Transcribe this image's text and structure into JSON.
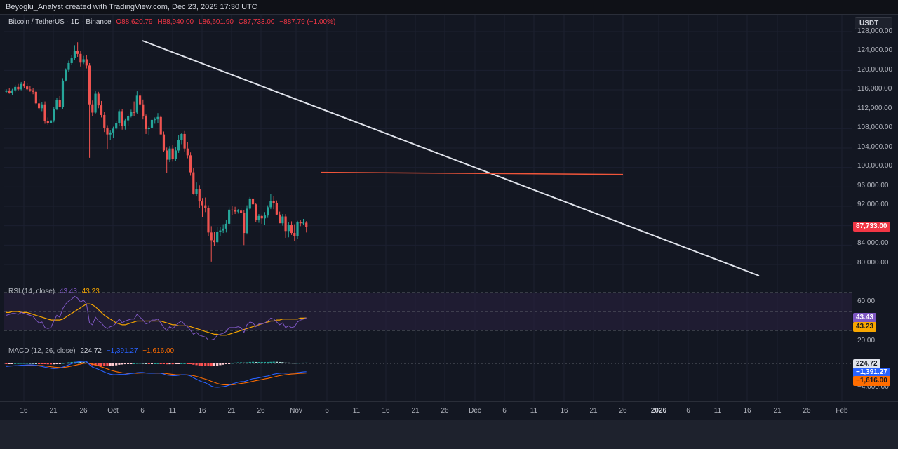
{
  "header": {
    "credit": "Beyoglu_Analyst created with TradingView.com, Dec 23, 2025 17:30 UTC"
  },
  "main": {
    "legend": {
      "symbol": "Bitcoin / TetherUS · 1D · Binance",
      "open": "O88,620.79",
      "high": "H88,940.00",
      "low": "L86,601.90",
      "close": "C87,733.00",
      "change": "−887.79 (−1.00%)"
    },
    "currency_button": "USDT",
    "price_ticks": [
      "128,000.00",
      "124,000.00",
      "120,000.00",
      "116,000.00",
      "112,000.00",
      "108,000.00",
      "104,000.00",
      "100,000.00",
      "96,000.00",
      "92,000.00",
      "88,000.00",
      "84,000.00",
      "80,000.00"
    ],
    "last_price": "87,733.00",
    "colors": {
      "up": "#26a69a",
      "down": "#ef5350",
      "trendline": "#e0e3eb",
      "support": "#f0553a",
      "price_tag": "#f23645"
    }
  },
  "rsi": {
    "legend": {
      "name": "RSI (14, close)",
      "value": "43.43",
      "ma": "43.23"
    },
    "ticks": [
      "60.00",
      "20.00"
    ],
    "tags": {
      "rsi": "43.43",
      "ma": "43.23"
    },
    "colors": {
      "rsi": "#7e57c2",
      "ma": "#f7a600",
      "band": "#2a2040"
    }
  },
  "macd": {
    "legend": {
      "name": "MACD (12, 26, close)",
      "hist": "224.72",
      "macd": "−1,391.27",
      "signal": "−1,616.00"
    },
    "ticks": [
      "−4,000.00"
    ],
    "tags": {
      "hist": "224.72",
      "macd": "−1,391.27",
      "signal": "−1,616.00"
    },
    "colors": {
      "macd": "#2962ff",
      "signal": "#ff6d00"
    }
  },
  "time_axis": [
    "16",
    "21",
    "26",
    "Oct",
    "6",
    "11",
    "16",
    "21",
    "26",
    "Nov",
    "6",
    "11",
    "16",
    "21",
    "26",
    "Dec",
    "6",
    "11",
    "16",
    "21",
    "26",
    "2026",
    "6",
    "11",
    "16",
    "21",
    "26",
    "Feb"
  ],
  "chart_data": {
    "type": "candlestick",
    "series": [
      {
        "name": "Bitcoin / TetherUS",
        "ohlc": [
          [
            115600,
            116100,
            115300,
            115800
          ],
          [
            115800,
            116400,
            115200,
            115400
          ],
          [
            115400,
            116200,
            114900,
            115900
          ],
          [
            115900,
            117000,
            115500,
            116600
          ],
          [
            116600,
            117200,
            115800,
            116100
          ],
          [
            116100,
            117600,
            115900,
            117200
          ],
          [
            117200,
            117800,
            116400,
            116700
          ],
          [
            116700,
            117400,
            115900,
            116100
          ],
          [
            116100,
            116800,
            115600,
            115900
          ],
          [
            115900,
            116300,
            115100,
            115600
          ],
          [
            115600,
            115900,
            113000,
            113200
          ],
          [
            113200,
            114100,
            111800,
            112200
          ],
          [
            112200,
            113500,
            111600,
            113000
          ],
          [
            113000,
            113600,
            109000,
            109600
          ],
          [
            109600,
            110300,
            108800,
            109200
          ],
          [
            109200,
            110000,
            108900,
            109700
          ],
          [
            109700,
            112500,
            109300,
            112000
          ],
          [
            112000,
            114300,
            111800,
            113900
          ],
          [
            113900,
            114700,
            112500,
            112400
          ],
          [
            112400,
            118400,
            112100,
            117900
          ],
          [
            117900,
            120400,
            117700,
            120100
          ],
          [
            120100,
            122000,
            119700,
            121500
          ],
          [
            121500,
            123200,
            121100,
            122500
          ],
          [
            122500,
            125200,
            122100,
            124100
          ],
          [
            124100,
            125800,
            122800,
            123400
          ],
          [
            123400,
            124000,
            120800,
            121600
          ],
          [
            121600,
            123000,
            121300,
            122300
          ],
          [
            122300,
            123100,
            120400,
            121000
          ],
          [
            121000,
            121500,
            102000,
            113000
          ],
          [
            113000,
            113800,
            110600,
            111300
          ],
          [
            111300,
            115700,
            111100,
            115200
          ],
          [
            115200,
            115600,
            112200,
            112800
          ],
          [
            112800,
            113700,
            110300,
            110800
          ],
          [
            110800,
            111400,
            107300,
            108200
          ],
          [
            108200,
            108700,
            103700,
            106800
          ],
          [
            106800,
            107600,
            105600,
            107200
          ],
          [
            107200,
            108400,
            106100,
            108000
          ],
          [
            108000,
            109600,
            107800,
            109100
          ],
          [
            109100,
            111900,
            108600,
            111600
          ],
          [
            111600,
            112000,
            107800,
            108500
          ],
          [
            108500,
            110100,
            107800,
            109700
          ],
          [
            109700,
            110900,
            108600,
            110600
          ],
          [
            110600,
            111900,
            110300,
            111400
          ],
          [
            111400,
            113600,
            110600,
            111300
          ],
          [
            111300,
            115700,
            111000,
            114800
          ],
          [
            114800,
            115400,
            112600,
            113000
          ],
          [
            113000,
            114000,
            109900,
            110500
          ],
          [
            110500,
            110900,
            106900,
            107900
          ],
          [
            107900,
            108600,
            106600,
            108200
          ],
          [
            108200,
            110600,
            107900,
            109800
          ],
          [
            109800,
            110300,
            109000,
            109900
          ],
          [
            109900,
            111200,
            109200,
            110400
          ],
          [
            110400,
            110700,
            106800,
            106800
          ],
          [
            106800,
            107400,
            103200,
            103500
          ],
          [
            103500,
            104100,
            98900,
            101600
          ],
          [
            101600,
            104400,
            101100,
            103900
          ],
          [
            103900,
            104700,
            101200,
            101800
          ],
          [
            101800,
            104200,
            101300,
            103500
          ],
          [
            103500,
            106600,
            103000,
            105600
          ],
          [
            105600,
            107100,
            104800,
            106900
          ],
          [
            106900,
            107500,
            103300,
            103900
          ],
          [
            103900,
            105300,
            101900,
            102500
          ],
          [
            102500,
            103100,
            98300,
            99000
          ],
          [
            99000,
            99800,
            94400,
            94500
          ],
          [
            94500,
            96900,
            94100,
            95600
          ],
          [
            95600,
            96300,
            91600,
            93000
          ],
          [
            93000,
            93700,
            89700,
            92200
          ],
          [
            92200,
            93800,
            90800,
            91600
          ],
          [
            91600,
            92200,
            85800,
            86600
          ],
          [
            86600,
            87900,
            80600,
            85000
          ],
          [
            85000,
            86700,
            83900,
            84600
          ],
          [
            84600,
            87700,
            84300,
            86800
          ],
          [
            86800,
            87700,
            85900,
            87000
          ],
          [
            87000,
            88300,
            86500,
            87400
          ],
          [
            87400,
            89200,
            86600,
            88400
          ],
          [
            88400,
            91800,
            88200,
            91300
          ],
          [
            91300,
            92000,
            90200,
            91200
          ],
          [
            91200,
            91900,
            90400,
            90900
          ],
          [
            90900,
            91400,
            90500,
            91100
          ],
          [
            91100,
            91700,
            90300,
            90700
          ],
          [
            90700,
            91200,
            84000,
            86500
          ],
          [
            86500,
            92200,
            86200,
            91500
          ],
          [
            91500,
            93900,
            91200,
            93600
          ],
          [
            93600,
            94100,
            92100,
            92400
          ],
          [
            92400,
            92700,
            88800,
            89200
          ],
          [
            89200,
            90400,
            88600,
            90000
          ],
          [
            90000,
            90300,
            88400,
            89500
          ],
          [
            89500,
            90800,
            88200,
            90100
          ],
          [
            90100,
            92200,
            89600,
            91800
          ],
          [
            91800,
            94600,
            91400,
            93100
          ],
          [
            93100,
            94100,
            91400,
            92600
          ],
          [
            92600,
            93200,
            90200,
            90300
          ],
          [
            90300,
            90900,
            88600,
            88500
          ],
          [
            88500,
            90400,
            88000,
            89900
          ],
          [
            89900,
            90400,
            85500,
            86900
          ],
          [
            86900,
            88800,
            85600,
            88200
          ],
          [
            88200,
            88900,
            86100,
            86500
          ],
          [
            86500,
            88300,
            84900,
            85900
          ],
          [
            85900,
            89000,
            85300,
            88700
          ],
          [
            88700,
            89100,
            87900,
            88500
          ],
          [
            88500,
            89400,
            88100,
            88620
          ],
          [
            88620,
            88940,
            86600,
            87733
          ]
        ]
      }
    ],
    "xlabels": [
      "16",
      "21",
      "26",
      "Oct",
      "6",
      "11",
      "16",
      "21",
      "26",
      "Nov",
      "6",
      "11",
      "16",
      "21",
      "26",
      "Dec",
      "6",
      "11",
      "16",
      "21",
      "26",
      "2026",
      "6",
      "11",
      "16",
      "21",
      "26",
      "Feb"
    ],
    "ylim": [
      76000,
      130000
    ],
    "trendline": {
      "from": [
        123400,
        "Oct 6"
      ],
      "to": [
        76500,
        "Feb 18"
      ]
    },
    "support_line": 99000,
    "rsi": {
      "ylim": [
        10,
        80
      ],
      "levels": [
        70,
        50,
        30
      ],
      "values": [
        46,
        47,
        48,
        48,
        47,
        49,
        48,
        47,
        46,
        45,
        41,
        38,
        39,
        33,
        32,
        33,
        40,
        46,
        44,
        53,
        58,
        61,
        63,
        66,
        64,
        60,
        62,
        58,
        38,
        36,
        44,
        40,
        38,
        34,
        32,
        34,
        35,
        38,
        42,
        38,
        40,
        41,
        42,
        42,
        47,
        44,
        41,
        37,
        38,
        41,
        41,
        42,
        38,
        33,
        30,
        34,
        32,
        35,
        38,
        40,
        36,
        34,
        30,
        26,
        28,
        25,
        24,
        23,
        20,
        20,
        21,
        25,
        26,
        27,
        29,
        33,
        33,
        33,
        34,
        33,
        28,
        36,
        39,
        38,
        34,
        37,
        37,
        38,
        40,
        43,
        42,
        39,
        36,
        38,
        33,
        35,
        33,
        34,
        39,
        41,
        42,
        43.43
      ],
      "ma": [
        49,
        49,
        50,
        50,
        50,
        49,
        49,
        49,
        48,
        47,
        46,
        45,
        44,
        43,
        42,
        41,
        41,
        41,
        41,
        42,
        44,
        46,
        48,
        50,
        52,
        54,
        56,
        58,
        58,
        57,
        55,
        52,
        49,
        46,
        44,
        42,
        40,
        38,
        37,
        36,
        36,
        37,
        38,
        39,
        40,
        40,
        40,
        40,
        40,
        40,
        40,
        40,
        40,
        39,
        38,
        37,
        36,
        36,
        35,
        35,
        35,
        35,
        34,
        33,
        32,
        31,
        30,
        29,
        28,
        27,
        26,
        26,
        25,
        25,
        25,
        26,
        27,
        28,
        29,
        30,
        31,
        32,
        33,
        34,
        35,
        36,
        37,
        38,
        39,
        40,
        40,
        41,
        41,
        42,
        42,
        42,
        42,
        42,
        42,
        43,
        43,
        43.23
      ]
    },
    "macd": {
      "ylim": [
        -5000,
        1000
      ],
      "macd": [
        -500,
        -450,
        -420,
        -380,
        -350,
        -300,
        -280,
        -260,
        -250,
        -260,
        -320,
        -420,
        -500,
        -620,
        -720,
        -820,
        -860,
        -820,
        -760,
        -600,
        -420,
        -220,
        -40,
        130,
        260,
        320,
        350,
        340,
        -200,
        -600,
        -800,
        -1000,
        -1200,
        -1450,
        -1650,
        -1800,
        -1880,
        -1900,
        -1850,
        -1850,
        -1820,
        -1750,
        -1680,
        -1650,
        -1550,
        -1500,
        -1520,
        -1600,
        -1650,
        -1650,
        -1620,
        -1600,
        -1650,
        -1780,
        -1950,
        -2000,
        -2050,
        -2050,
        -2000,
        -1900,
        -1900,
        -1950,
        -2100,
        -2400,
        -2650,
        -2900,
        -3100,
        -3250,
        -3500,
        -3800,
        -3950,
        -4000,
        -3950,
        -3900,
        -3800,
        -3650,
        -3450,
        -3300,
        -3150,
        -3050,
        -3050,
        -2900,
        -2700,
        -2550,
        -2500,
        -2400,
        -2300,
        -2200,
        -2100,
        -1950,
        -1800,
        -1700,
        -1650,
        -1600,
        -1650,
        -1600,
        -1600,
        -1600,
        -1550,
        -1480,
        -1420,
        -1391.27
      ],
      "signal": [
        -400,
        -410,
        -415,
        -410,
        -400,
        -385,
        -365,
        -345,
        -330,
        -320,
        -320,
        -340,
        -370,
        -420,
        -480,
        -550,
        -610,
        -650,
        -680,
        -670,
        -620,
        -540,
        -440,
        -330,
        -210,
        -100,
        0,
        70,
        10,
        -110,
        -250,
        -400,
        -560,
        -740,
        -920,
        -1100,
        -1250,
        -1380,
        -1480,
        -1560,
        -1610,
        -1640,
        -1650,
        -1650,
        -1630,
        -1610,
        -1600,
        -1600,
        -1610,
        -1620,
        -1620,
        -1620,
        -1620,
        -1650,
        -1710,
        -1780,
        -1830,
        -1880,
        -1910,
        -1910,
        -1910,
        -1920,
        -1960,
        -2050,
        -2180,
        -2320,
        -2480,
        -2630,
        -2800,
        -3000,
        -3180,
        -3350,
        -3480,
        -3560,
        -3600,
        -3600,
        -3580,
        -3530,
        -3450,
        -3360,
        -3290,
        -3210,
        -3110,
        -3000,
        -2900,
        -2800,
        -2700,
        -2600,
        -2500,
        -2390,
        -2280,
        -2160,
        -2050,
        -1960,
        -1890,
        -1830,
        -1780,
        -1740,
        -1700,
        -1660,
        -1630,
        -1616
      ]
    }
  }
}
